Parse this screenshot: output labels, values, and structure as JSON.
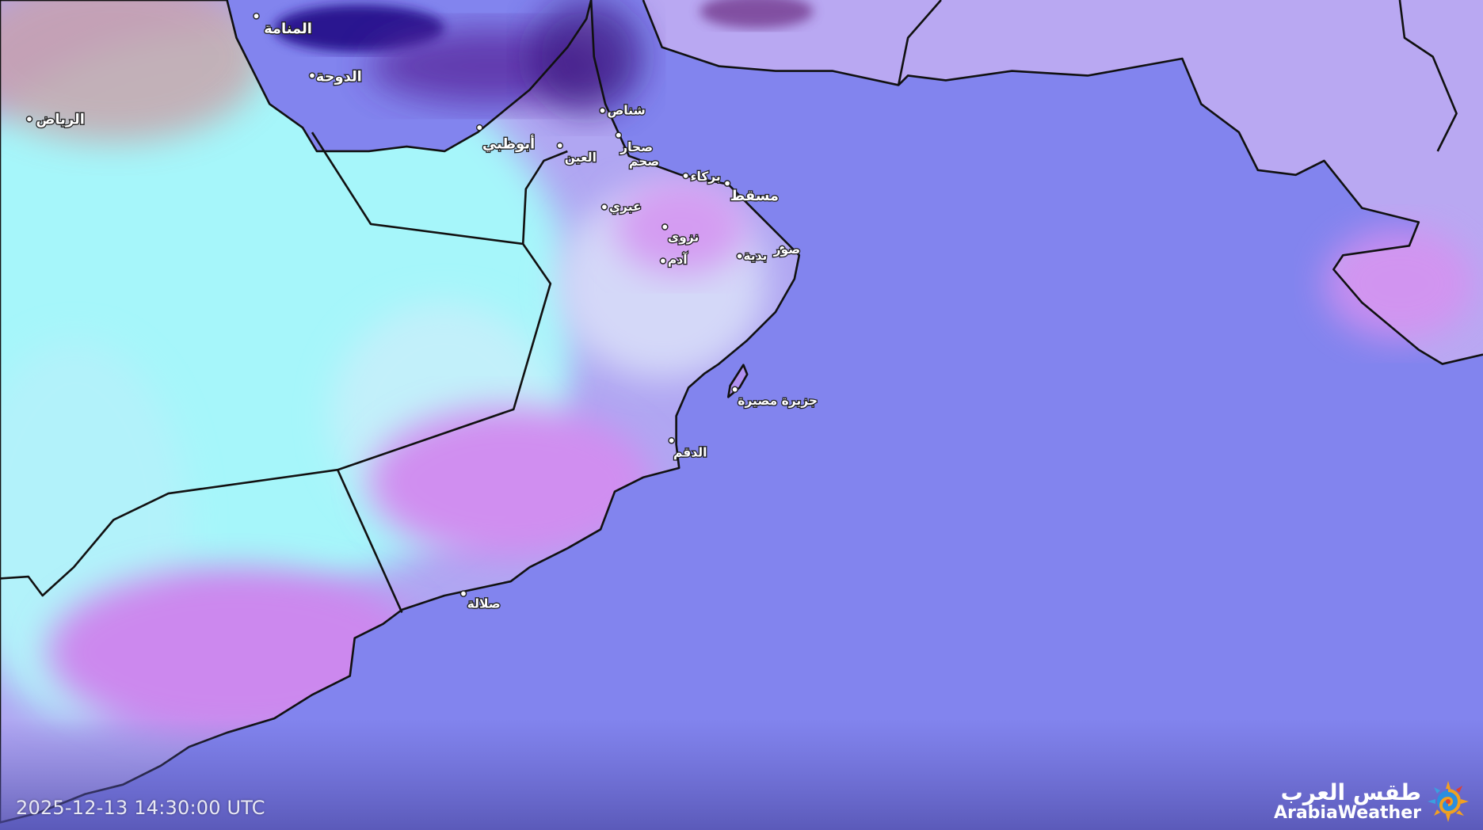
{
  "map": {
    "timestamp": "2025-12-13 14:30:00 UTC",
    "colors": {
      "sea": "#8284ee",
      "dust_land": "#a8f4f8",
      "desert_land": "#c890f0",
      "cloud_dark": "#3a1aa0",
      "border": "#111111"
    },
    "cities": [
      {
        "name": "المنامة",
        "major": true
      },
      {
        "name": "الدوحة",
        "major": true
      },
      {
        "name": "الرياض",
        "major": true
      },
      {
        "name": "أبوظبي",
        "major": true
      },
      {
        "name": "العين",
        "major": false
      },
      {
        "name": "شناص",
        "major": false
      },
      {
        "name": "صحار",
        "major": false
      },
      {
        "name": "صحم",
        "major": false
      },
      {
        "name": "بركاء",
        "major": false
      },
      {
        "name": "مسقط",
        "major": true
      },
      {
        "name": "عبري",
        "major": false
      },
      {
        "name": "نزوى",
        "major": false
      },
      {
        "name": "آدم",
        "major": false
      },
      {
        "name": "بدية",
        "major": false
      },
      {
        "name": "صور",
        "major": false
      },
      {
        "name": "جزيرة مصيرة",
        "major": false
      },
      {
        "name": "الدقم",
        "major": false
      },
      {
        "name": "صلالة",
        "major": false
      }
    ]
  },
  "logo": {
    "arabic": "طقس العرب",
    "english": "ArabiaWeather",
    "icon": "sun-swirl-icon"
  }
}
